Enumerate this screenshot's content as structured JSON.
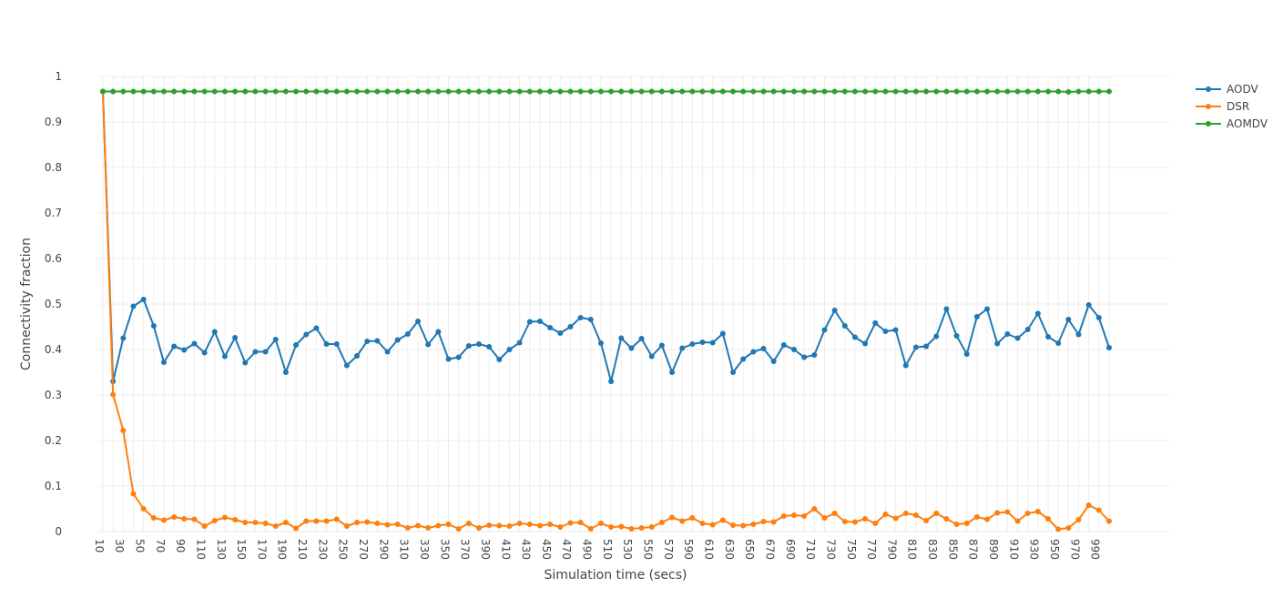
{
  "chart_data": {
    "type": "line",
    "xlabel": "Simulation time (secs)",
    "ylabel": "Connectivity fraction",
    "xlim": [
      10,
      1000
    ],
    "ylim": [
      0,
      1
    ],
    "grid": true,
    "legend_position": "top-right",
    "x": [
      10,
      20,
      30,
      40,
      50,
      60,
      70,
      80,
      90,
      100,
      110,
      120,
      130,
      140,
      150,
      160,
      170,
      180,
      190,
      200,
      210,
      220,
      230,
      240,
      250,
      260,
      270,
      280,
      290,
      300,
      310,
      320,
      330,
      340,
      350,
      360,
      370,
      380,
      390,
      400,
      410,
      420,
      430,
      440,
      450,
      460,
      470,
      480,
      490,
      500,
      510,
      520,
      530,
      540,
      550,
      560,
      570,
      580,
      590,
      600,
      610,
      620,
      630,
      640,
      650,
      660,
      670,
      680,
      690,
      700,
      710,
      720,
      730,
      740,
      750,
      760,
      770,
      780,
      790,
      800,
      810,
      820,
      830,
      840,
      850,
      860,
      870,
      880,
      890,
      900,
      910,
      920,
      930,
      940,
      950,
      960,
      970,
      980,
      990,
      1000
    ],
    "x_tick_labels": [
      "10",
      "30",
      "50",
      "70",
      "90",
      "110",
      "130",
      "150",
      "170",
      "190",
      "210",
      "230",
      "250",
      "270",
      "290",
      "310",
      "330",
      "350",
      "370",
      "390",
      "410",
      "430",
      "450",
      "470",
      "490",
      "510",
      "530",
      "550",
      "570",
      "590",
      "610",
      "630",
      "650",
      "670",
      "690",
      "710",
      "730",
      "750",
      "770",
      "790",
      "810",
      "830",
      "850",
      "870",
      "890",
      "910",
      "930",
      "950",
      "970",
      "990"
    ],
    "x_tick_values": [
      10,
      30,
      50,
      70,
      90,
      110,
      130,
      150,
      170,
      190,
      210,
      230,
      250,
      270,
      290,
      310,
      330,
      350,
      370,
      390,
      410,
      430,
      450,
      470,
      490,
      510,
      530,
      550,
      570,
      590,
      610,
      630,
      650,
      670,
      690,
      710,
      730,
      750,
      770,
      790,
      810,
      830,
      850,
      870,
      890,
      910,
      930,
      950,
      970,
      990
    ],
    "y_tick_labels": [
      "0",
      "0.1",
      "0.2",
      "0.3",
      "0.4",
      "0.5",
      "0.6",
      "0.7",
      "0.8",
      "0.9",
      "1"
    ],
    "y_tick_values": [
      0,
      0.1,
      0.2,
      0.3,
      0.4,
      0.5,
      0.6,
      0.7,
      0.8,
      0.9,
      1
    ],
    "series": [
      {
        "name": "AODV",
        "color": "#1f77b4",
        "values": [
          0.967,
          0.33,
          0.425,
          0.495,
          0.51,
          0.452,
          0.372,
          0.407,
          0.399,
          0.413,
          0.393,
          0.439,
          0.385,
          0.426,
          0.371,
          0.395,
          0.395,
          0.422,
          0.35,
          0.41,
          0.433,
          0.447,
          0.412,
          0.412,
          0.365,
          0.386,
          0.418,
          0.419,
          0.395,
          0.421,
          0.434,
          0.462,
          0.411,
          0.439,
          0.379,
          0.383,
          0.408,
          0.412,
          0.406,
          0.378,
          0.4,
          0.415,
          0.461,
          0.462,
          0.448,
          0.436,
          0.45,
          0.47,
          0.466,
          0.414,
          0.33,
          0.425,
          0.403,
          0.424,
          0.385,
          0.409,
          0.35,
          0.403,
          0.412,
          0.416,
          0.415,
          0.435,
          0.35,
          0.379,
          0.395,
          0.402,
          0.374,
          0.41,
          0.4,
          0.383,
          0.388,
          0.443,
          0.486,
          0.452,
          0.427,
          0.413,
          0.458,
          0.44,
          0.443,
          0.365,
          0.405,
          0.407,
          0.429,
          0.489,
          0.43,
          0.39,
          0.472,
          0.489,
          0.413,
          0.434,
          0.425,
          0.444,
          0.479,
          0.428,
          0.414,
          0.466,
          0.433,
          0.498,
          0.47,
          0.404
        ]
      },
      {
        "name": "DSR",
        "color": "#ff7f0e",
        "values": [
          0.967,
          0.301,
          0.222,
          0.083,
          0.05,
          0.03,
          0.025,
          0.032,
          0.028,
          0.027,
          0.012,
          0.024,
          0.031,
          0.026,
          0.02,
          0.02,
          0.018,
          0.012,
          0.02,
          0.007,
          0.023,
          0.023,
          0.023,
          0.027,
          0.012,
          0.02,
          0.021,
          0.018,
          0.015,
          0.016,
          0.008,
          0.013,
          0.008,
          0.013,
          0.016,
          0.006,
          0.018,
          0.008,
          0.014,
          0.013,
          0.012,
          0.018,
          0.016,
          0.013,
          0.016,
          0.01,
          0.019,
          0.02,
          0.006,
          0.018,
          0.01,
          0.011,
          0.006,
          0.008,
          0.01,
          0.02,
          0.031,
          0.023,
          0.03,
          0.018,
          0.015,
          0.025,
          0.014,
          0.013,
          0.016,
          0.022,
          0.021,
          0.034,
          0.036,
          0.034,
          0.05,
          0.03,
          0.04,
          0.022,
          0.021,
          0.028,
          0.018,
          0.038,
          0.029,
          0.04,
          0.036,
          0.024,
          0.04,
          0.028,
          0.016,
          0.018,
          0.032,
          0.027,
          0.041,
          0.043,
          0.023,
          0.04,
          0.044,
          0.028,
          0.005,
          0.008,
          0.026,
          0.058,
          0.047,
          0.023
        ]
      },
      {
        "name": "AOMDV",
        "color": "#2ca02c",
        "values": [
          0.967,
          0.967,
          0.967,
          0.967,
          0.967,
          0.967,
          0.967,
          0.967,
          0.967,
          0.967,
          0.967,
          0.967,
          0.967,
          0.967,
          0.967,
          0.967,
          0.967,
          0.967,
          0.967,
          0.967,
          0.967,
          0.967,
          0.967,
          0.967,
          0.967,
          0.967,
          0.967,
          0.967,
          0.967,
          0.967,
          0.967,
          0.967,
          0.967,
          0.967,
          0.967,
          0.967,
          0.967,
          0.967,
          0.967,
          0.967,
          0.967,
          0.967,
          0.967,
          0.967,
          0.967,
          0.967,
          0.967,
          0.967,
          0.967,
          0.967,
          0.967,
          0.967,
          0.967,
          0.967,
          0.967,
          0.967,
          0.967,
          0.967,
          0.967,
          0.967,
          0.967,
          0.967,
          0.967,
          0.967,
          0.967,
          0.967,
          0.967,
          0.967,
          0.967,
          0.967,
          0.967,
          0.967,
          0.967,
          0.967,
          0.967,
          0.967,
          0.967,
          0.967,
          0.967,
          0.967,
          0.967,
          0.967,
          0.967,
          0.967,
          0.967,
          0.967,
          0.967,
          0.967,
          0.967,
          0.967,
          0.967,
          0.967,
          0.967,
          0.967,
          0.967,
          0.966,
          0.967,
          0.967,
          0.967,
          0.967
        ]
      }
    ]
  }
}
